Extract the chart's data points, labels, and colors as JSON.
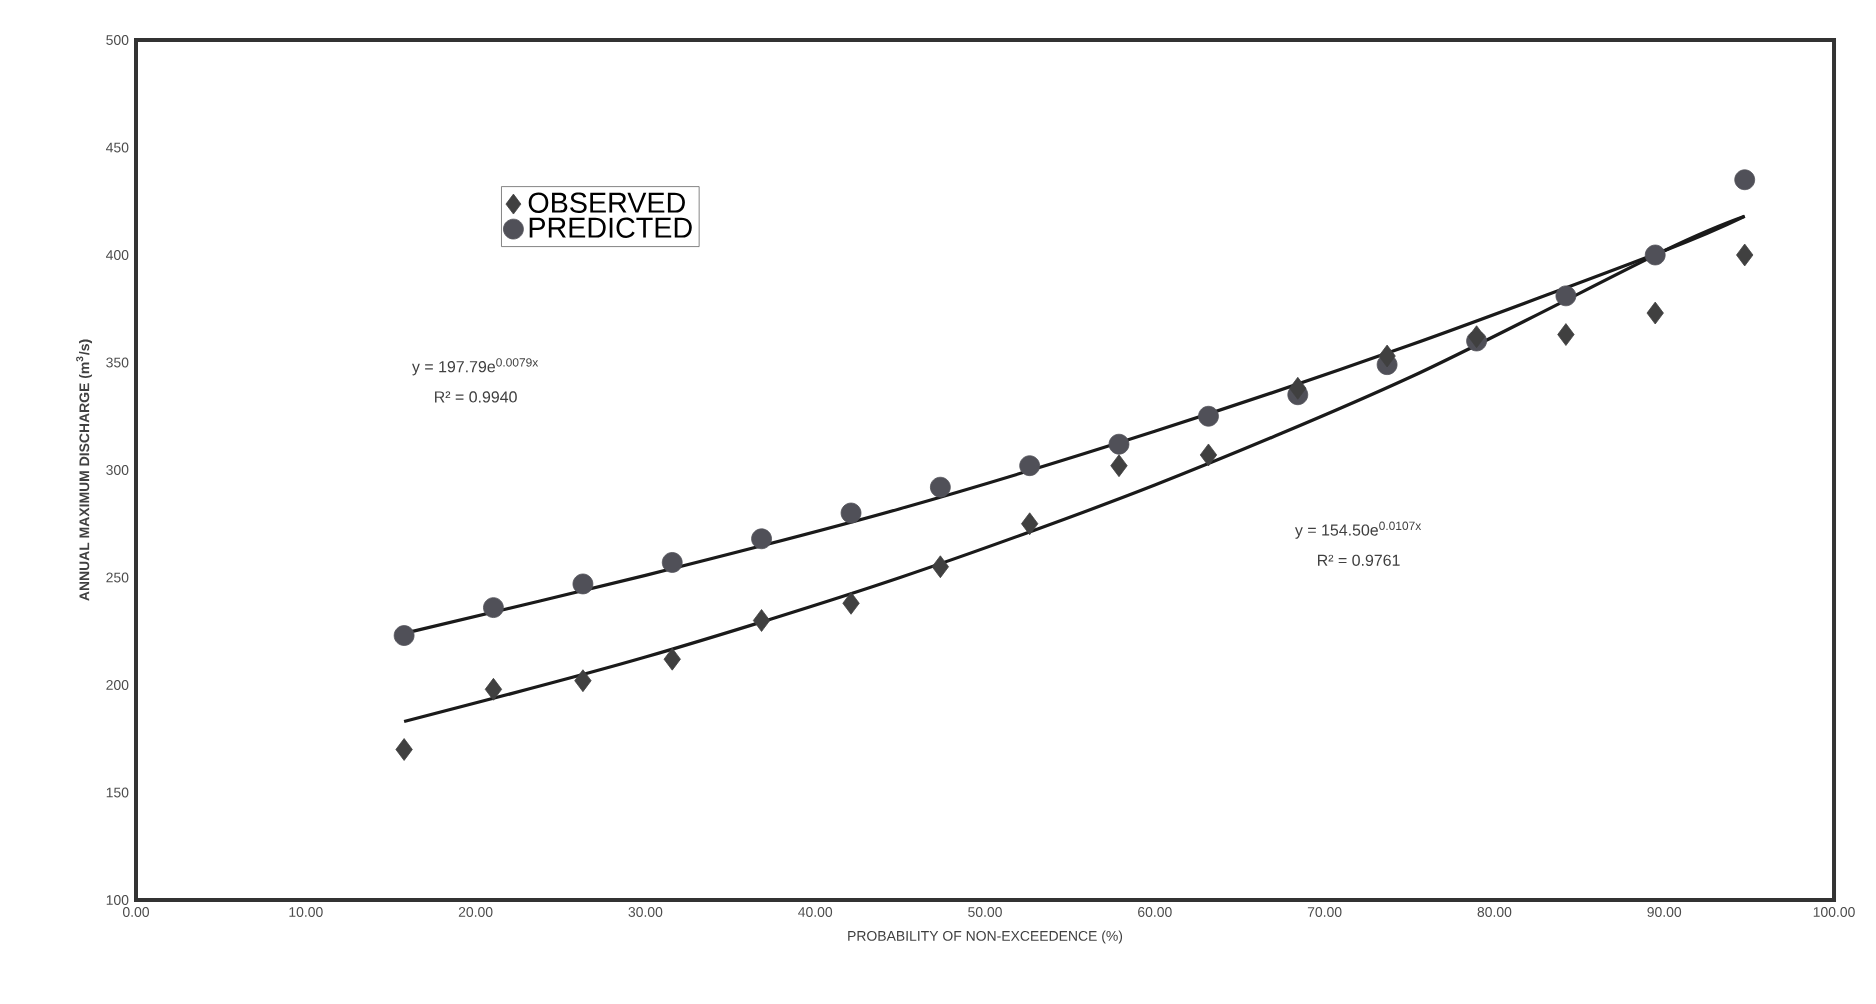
{
  "chart_data": {
    "type": "scatter",
    "xlabel": "PROBABILITY OF NON-EXCEEDENCE (%)",
    "ylabel": "ANNUAL MAXIMUM DISCHARGE (m$^{3}$/s)",
    "xlim": [
      0,
      100
    ],
    "ylim": [
      100,
      500
    ],
    "xticks": [
      {
        "value": 0,
        "label": "0.00"
      },
      {
        "value": 10,
        "label": "10.00"
      },
      {
        "value": 20,
        "label": "20.00"
      },
      {
        "value": 30,
        "label": "30.00"
      },
      {
        "value": 40,
        "label": "40.00"
      },
      {
        "value": 50,
        "label": "50.00"
      },
      {
        "value": 60,
        "label": "60.00"
      },
      {
        "value": 70,
        "label": "70.00"
      },
      {
        "value": 80,
        "label": "80.00"
      },
      {
        "value": 90,
        "label": "90.00"
      },
      {
        "value": 100,
        "label": "100.00"
      }
    ],
    "yticks": [
      100,
      150,
      200,
      250,
      300,
      350,
      400,
      450,
      500
    ],
    "grid": false,
    "legend": "top left",
    "series": [
      {
        "name": "OBSERVED",
        "type": "scatter",
        "marker": "diamond",
        "color": "#404040",
        "x": [
          15.79,
          21.05,
          26.32,
          31.58,
          36.84,
          42.11,
          47.37,
          52.63,
          57.89,
          63.16,
          68.42,
          73.68,
          78.95,
          84.21,
          89.47,
          94.74
        ],
        "values": [
          170,
          198,
          202,
          212,
          230,
          238,
          255,
          275,
          302,
          307,
          338,
          353,
          362,
          363,
          373,
          400
        ]
      },
      {
        "name": "PREDICTED",
        "type": "scatter",
        "marker": "circle",
        "color": "#505058",
        "x": [
          15.79,
          21.05,
          26.32,
          31.58,
          36.84,
          42.11,
          47.37,
          52.63,
          57.89,
          63.16,
          68.42,
          73.68,
          78.95,
          84.21,
          89.47,
          94.74
        ],
        "values": [
          223,
          236,
          247,
          257,
          268,
          280,
          292,
          302,
          312,
          325,
          335,
          349,
          360,
          381,
          400,
          435
        ]
      },
      {
        "type": "line",
        "marker": "none",
        "color": "#1a1a1a",
        "x": [
          15.79,
          30,
          45,
          60,
          75,
          90,
          94.74
        ],
        "values": [
          224,
          251,
          282,
          318,
          358,
          402,
          418
        ]
      },
      {
        "type": "line",
        "marker": "none",
        "color": "#1a1a1a",
        "x": [
          15.79,
          30,
          45,
          60,
          75,
          90,
          94.74
        ],
        "values": [
          183,
          213,
          250,
          293,
          343,
          402,
          418
        ]
      }
    ],
    "annotations": [
      "y = 197.79e$^{0.0079x}$",
      "R² = 0.9940",
      "y = 154.50e$^{0.0107x}$",
      "R² = 0.9761"
    ]
  }
}
